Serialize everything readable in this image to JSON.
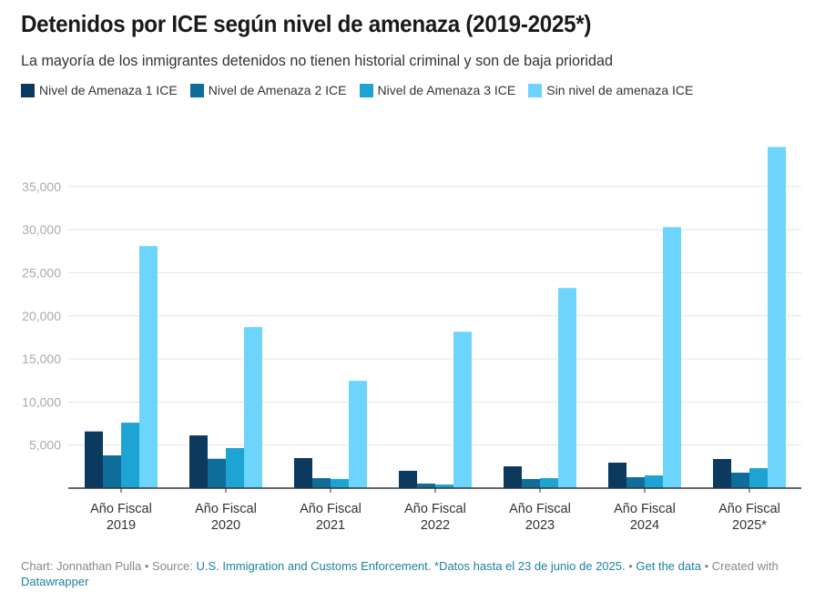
{
  "header": {
    "title": "Detenidos por ICE según nivel de amenaza (2019-2025*)",
    "subtitle": "La mayoría de los inmigrantes detenidos no tienen historial criminal y son de baja prioridad"
  },
  "footer": {
    "chart_prefix": "Chart: Jonnathan Pulla • Source: ",
    "source_link": "U.S. Immigration and Customs Enforcement. *Datos hasta el 23 de junio de 2025.",
    "sep1": " • ",
    "get_data": "Get the data",
    "created_with": " • Created with ",
    "datawrapper": "Datawrapper"
  },
  "chart_data": {
    "type": "bar",
    "title": "Detenidos por ICE según nivel de amenaza (2019-2025*)",
    "subtitle": "La mayoría de los inmigrantes detenidos no tienen historial criminal y son de baja prioridad",
    "xlabel": "",
    "ylabel": "",
    "ylim": [
      0,
      40000
    ],
    "yticks": [
      5000,
      10000,
      15000,
      20000,
      25000,
      30000,
      35000
    ],
    "ytick_labels": [
      "5,000",
      "10,000",
      "15,000",
      "20,000",
      "25,000",
      "30,000",
      "35,000"
    ],
    "grid": true,
    "legend_position": "top-left",
    "categories": [
      [
        "Año Fiscal",
        "2019"
      ],
      [
        "Año Fiscal",
        "2020"
      ],
      [
        "Año Fiscal",
        "2021"
      ],
      [
        "Año Fiscal",
        "2022"
      ],
      [
        "Año Fiscal",
        "2023"
      ],
      [
        "Año Fiscal",
        "2024"
      ],
      [
        "Año Fiscal",
        "2025*"
      ]
    ],
    "series": [
      {
        "name": "Nivel de Amenaza 1 ICE",
        "color": "#0b3a5e",
        "values": [
          6580,
          6120,
          3490,
          2010,
          2530,
          2960,
          3380
        ]
      },
      {
        "name": "Nivel de Amenaza 2 ICE",
        "color": "#0e6e99",
        "values": [
          3800,
          3410,
          1160,
          530,
          1060,
          1270,
          1800
        ]
      },
      {
        "name": "Nivel de Amenaza 3 ICE",
        "color": "#1ea4d2",
        "values": [
          7600,
          4650,
          1060,
          420,
          1160,
          1480,
          2320
        ]
      },
      {
        "name": "Sin nivel de amenaza ICE",
        "color": "#6dd5fc",
        "values": [
          28100,
          18690,
          12460,
          18160,
          23230,
          30300,
          39600
        ]
      }
    ]
  }
}
